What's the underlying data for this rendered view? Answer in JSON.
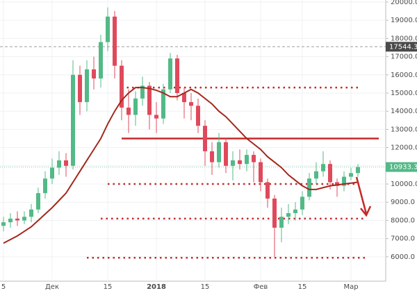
{
  "chart_data": {
    "type": "candlestick",
    "categories": [
      "5",
      null,
      null,
      null,
      null,
      null,
      null,
      "Дек",
      null,
      null,
      null,
      null,
      null,
      null,
      null,
      "15",
      null,
      null,
      null,
      null,
      null,
      null,
      "2018",
      null,
      null,
      null,
      null,
      null,
      null,
      "15",
      null,
      null,
      null,
      null,
      null,
      null,
      null,
      "Фев",
      null,
      null,
      null,
      null,
      null,
      "15",
      null,
      null,
      null,
      null,
      null,
      null,
      "Мар",
      null
    ],
    "open": [
      7700,
      7900,
      8100,
      8000,
      8200,
      8600,
      9500,
      10300,
      10900,
      11300,
      11000,
      16000,
      14500,
      16300,
      15800,
      17800,
      19200,
      16500,
      14200,
      13800,
      14700,
      15400,
      13800,
      13600,
      15200,
      16900,
      15000,
      14500,
      14300,
      13200,
      11800,
      11200,
      12300,
      11000,
      11300,
      11100,
      11600,
      11200,
      10100,
      9200,
      7600,
      8200,
      8400,
      8600,
      9300,
      10300,
      10700,
      11100,
      10100,
      9900,
      10400,
      10600
    ],
    "high": [
      8200,
      8400,
      8500,
      8500,
      8900,
      9800,
      10700,
      11400,
      11800,
      11700,
      16800,
      16500,
      16800,
      17000,
      18200,
      19700,
      19500,
      16800,
      15200,
      15100,
      15900,
      15600,
      14500,
      15500,
      17200,
      17100,
      15300,
      15000,
      14700,
      13500,
      12300,
      12800,
      12500,
      11800,
      11900,
      11900,
      11800,
      11400,
      10300,
      9400,
      8700,
      8900,
      9000,
      9600,
      10600,
      11200,
      11800,
      11300,
      10300,
      10700,
      10900,
      11100
    ],
    "low": [
      7400,
      7600,
      7700,
      7800,
      7900,
      8400,
      9200,
      10000,
      10500,
      10400,
      10800,
      13800,
      14000,
      15200,
      15300,
      17300,
      15800,
      13500,
      12800,
      13200,
      14300,
      13000,
      12800,
      13300,
      15000,
      14600,
      13600,
      13500,
      12800,
      11000,
      10500,
      10900,
      10600,
      10200,
      10800,
      10700,
      10100,
      9600,
      8700,
      6000,
      6800,
      7800,
      8000,
      8300,
      9100,
      10000,
      10400,
      9700,
      9300,
      9600,
      10200,
      10400
    ],
    "close": [
      7900,
      8100,
      8000,
      8200,
      8600,
      9500,
      10300,
      10900,
      11300,
      11000,
      16000,
      14500,
      16300,
      15800,
      17800,
      19200,
      16500,
      14200,
      13800,
      14700,
      15400,
      13800,
      13600,
      15200,
      16900,
      15000,
      14500,
      14300,
      13200,
      11800,
      11200,
      12300,
      11000,
      11300,
      11100,
      11600,
      11200,
      10100,
      9200,
      7600,
      8200,
      8400,
      8600,
      9300,
      10300,
      10700,
      11100,
      10100,
      9900,
      10400,
      10600,
      10933.3
    ],
    "up_color": "#53b987",
    "down_color": "#e0495b",
    "moving_average": {
      "color": "#a3271b",
      "values": [
        6750,
        6950,
        7150,
        7400,
        7650,
        8000,
        8350,
        8700,
        9100,
        9500,
        10100,
        10700,
        11300,
        11900,
        12500,
        13300,
        14000,
        14600,
        15000,
        15300,
        15300,
        15250,
        15150,
        15000,
        14800,
        14800,
        15000,
        15200,
        15000,
        14700,
        14400,
        14000,
        13700,
        13300,
        12900,
        12500,
        12200,
        11900,
        11500,
        11200,
        10900,
        10500,
        10200,
        9900,
        9700,
        9700,
        9800,
        9900,
        9950,
        10000,
        10050,
        10100
      ]
    },
    "levels": [
      {
        "value": 12500,
        "style": "solid",
        "from": 17,
        "to": 54
      },
      {
        "value": 15300,
        "style": "dotted",
        "from": 17,
        "to": 51
      },
      {
        "value": 10000,
        "style": "dotted",
        "from": 15,
        "to": 51
      },
      {
        "value": 8100,
        "style": "dotted",
        "from": 14,
        "to": 52
      },
      {
        "value": 5950,
        "style": "dotted",
        "from": 12,
        "to": 52
      }
    ],
    "price_line": {
      "value": 17544.3,
      "label": "17544.3"
    },
    "last_price": {
      "value": 10933.3,
      "label": "10933.3",
      "color": "#53b987"
    },
    "ylim": [
      4660,
      20112
    ],
    "yticks": [
      {
        "value": 6000,
        "label": "6000.0"
      },
      {
        "value": 7000,
        "label": "7000.0"
      },
      {
        "value": 8000,
        "label": "8000.0"
      },
      {
        "value": 9000,
        "label": "9000.0"
      },
      {
        "value": 10000,
        "label": "10000.0"
      },
      {
        "value": 11000,
        "label": "11000.0"
      },
      {
        "value": 12000,
        "label": "12000.0"
      },
      {
        "value": 13000,
        "label": "13000.0"
      },
      {
        "value": 14000,
        "label": "14000.0"
      },
      {
        "value": 15000,
        "label": "15000.0"
      },
      {
        "value": 16000,
        "label": "16000.0"
      },
      {
        "value": 17000,
        "label": "17000.0"
      },
      {
        "value": 18000,
        "label": "18000.0"
      },
      {
        "value": 19000,
        "label": "19000.0"
      },
      {
        "value": 20000,
        "label": "20000.0"
      }
    ],
    "grid": true
  }
}
